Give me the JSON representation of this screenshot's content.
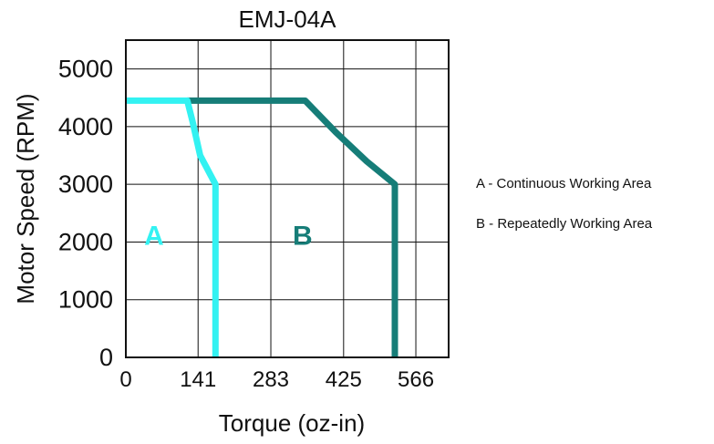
{
  "chart_data": {
    "type": "area",
    "title": "EMJ-04A",
    "xlabel": "Torque (oz-in)",
    "ylabel": "Motor Speed (RPM)",
    "x_ticks": [
      0,
      141,
      283,
      425,
      566
    ],
    "y_ticks": [
      0,
      1000,
      2000,
      3000,
      4000,
      5000
    ],
    "xlim": [
      0,
      630
    ],
    "ylim": [
      0,
      5500
    ],
    "grid": true,
    "colors": {
      "A": "#33f2f2",
      "B": "#167d78"
    },
    "series": [
      {
        "name": "A",
        "region_label": "A",
        "x": [
          0,
          120,
          130,
          145,
          175,
          175,
          175
        ],
        "y": [
          4450,
          4450,
          4100,
          3500,
          3000,
          1000,
          0
        ]
      },
      {
        "name": "B",
        "region_label": "B",
        "x": [
          120,
          350,
          410,
          470,
          525,
          525,
          525
        ],
        "y": [
          4450,
          4450,
          3900,
          3400,
          3000,
          1000,
          0
        ]
      }
    ],
    "legend": {
      "position": "right",
      "entries": [
        "A - Continuous Working Area",
        "B - Repeatedly Working Area"
      ]
    }
  }
}
